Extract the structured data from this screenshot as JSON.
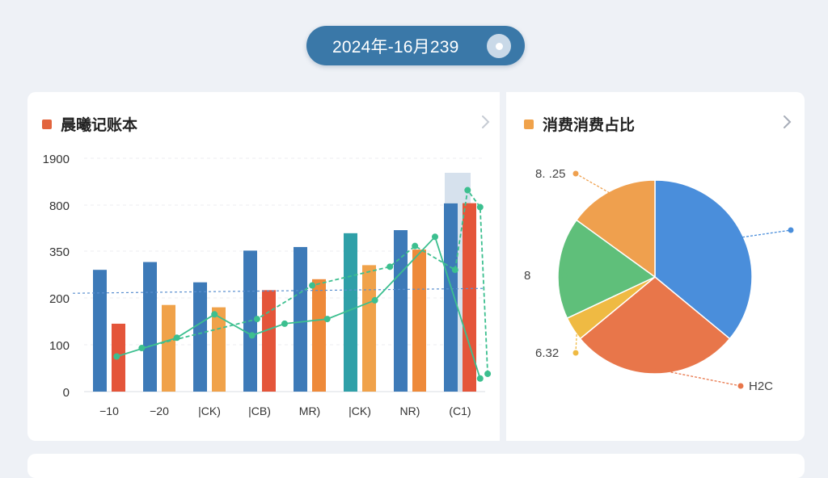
{
  "date_bar": {
    "label": "2024年-16月239"
  },
  "left_panel": {
    "title": "晨曦记账本",
    "accent": "#e2643d"
  },
  "right_panel": {
    "title": "消费消费占比",
    "accent": "#f0a24a"
  },
  "colors": {
    "bar_blue": "#3d7ab8",
    "bar_orange": "#ee8a3a",
    "bar_teal": "#2fa0a8",
    "bar_red": "#e4553a",
    "line_green": "#3cbf8f",
    "ref_line": "#5a8fcf",
    "highlight": "#cfdcea"
  },
  "chart_data": [
    {
      "type": "bar",
      "yticks": [
        "1900",
        "800",
        "350",
        "200",
        "100",
        "0"
      ],
      "categories": [
        "−10",
        "−20",
        "|CK)",
        "|CB)",
        "MR)",
        "|CK)",
        "NR)",
        "(C1)"
      ],
      "series": [
        {
          "values": [
            290,
            315,
            250,
            355,
            390,
            525,
            555,
            840
          ],
          "colors": [
            "#3d7ab8",
            "#3d7ab8",
            "#3d7ab8",
            "#3d7ab8",
            "#3d7ab8",
            "#2fa0a8",
            "#3d7ab8",
            "#3d7ab8"
          ]
        },
        {
          "values": [
            145,
            185,
            180,
            225,
            260,
            305,
            365,
            845
          ],
          "colors": [
            "#e4553a",
            "#f0a24a",
            "#f0a24a",
            "#e4553a",
            "#ee8a3a",
            "#f0a24a",
            "#ee8a3a",
            "#e4553a"
          ]
        }
      ],
      "line_1": [
        [
          0.15,
          75
        ],
        [
          1.35,
          115
        ],
        [
          2.1,
          165
        ],
        [
          2.85,
          120
        ],
        [
          3.5,
          145
        ],
        [
          4.35,
          155
        ],
        [
          5.3,
          195
        ],
        [
          6.5,
          490
        ],
        [
          7.4,
          28
        ]
      ],
      "line_2": [
        [
          0.65,
          93
        ],
        [
          2.95,
          155
        ],
        [
          4.05,
          240
        ],
        [
          5.6,
          300
        ],
        [
          6.1,
          400
        ],
        [
          6.9,
          290
        ],
        [
          7.15,
          1150
        ],
        [
          7.4,
          780
        ],
        [
          7.55,
          38
        ]
      ],
      "reference_line": 215,
      "highlight_category": 7
    },
    {
      "type": "pie",
      "slices": [
        {
          "value": 36,
          "color": "#4a8edb",
          "label": ""
        },
        {
          "value": 28,
          "color": "#e8764a",
          "label": "H2C"
        },
        {
          "value": 4,
          "color": "#efba43",
          "label": "6.32"
        },
        {
          "value": 17,
          "color": "#5fbf7a",
          "label": "8"
        },
        {
          "value": 15,
          "color": "#efa04e",
          "label": "8. .25"
        }
      ]
    }
  ]
}
